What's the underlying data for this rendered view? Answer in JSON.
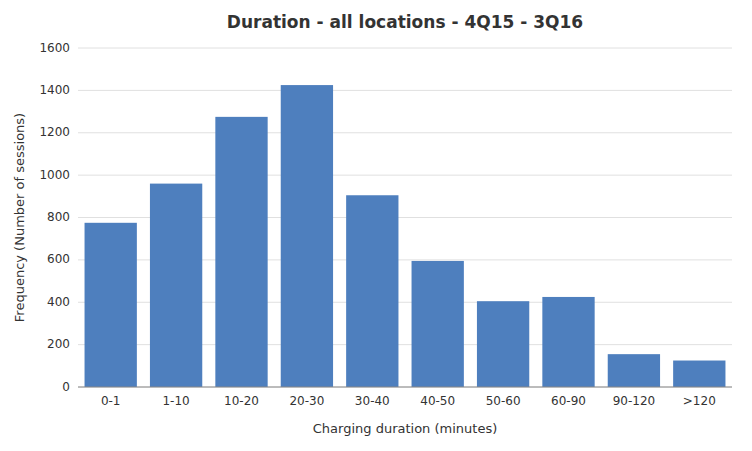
{
  "chart_data": {
    "type": "bar",
    "title": "Duration - all locations - 4Q15 - 3Q16",
    "xlabel": "Charging duration (minutes)",
    "ylabel": "Frequency (Number of sessions)",
    "categories": [
      "0-1",
      "1-10",
      "10-20",
      "20-30",
      "30-40",
      "40-50",
      "50-60",
      "60-90",
      "90-120",
      ">120"
    ],
    "values": [
      775,
      960,
      1275,
      1425,
      905,
      595,
      405,
      425,
      155,
      125
    ],
    "color": "#4e7fbe",
    "ylim": [
      0,
      1600
    ],
    "yticks": [
      0,
      200,
      400,
      600,
      800,
      1000,
      1200,
      1400,
      1600
    ],
    "grid": true
  }
}
